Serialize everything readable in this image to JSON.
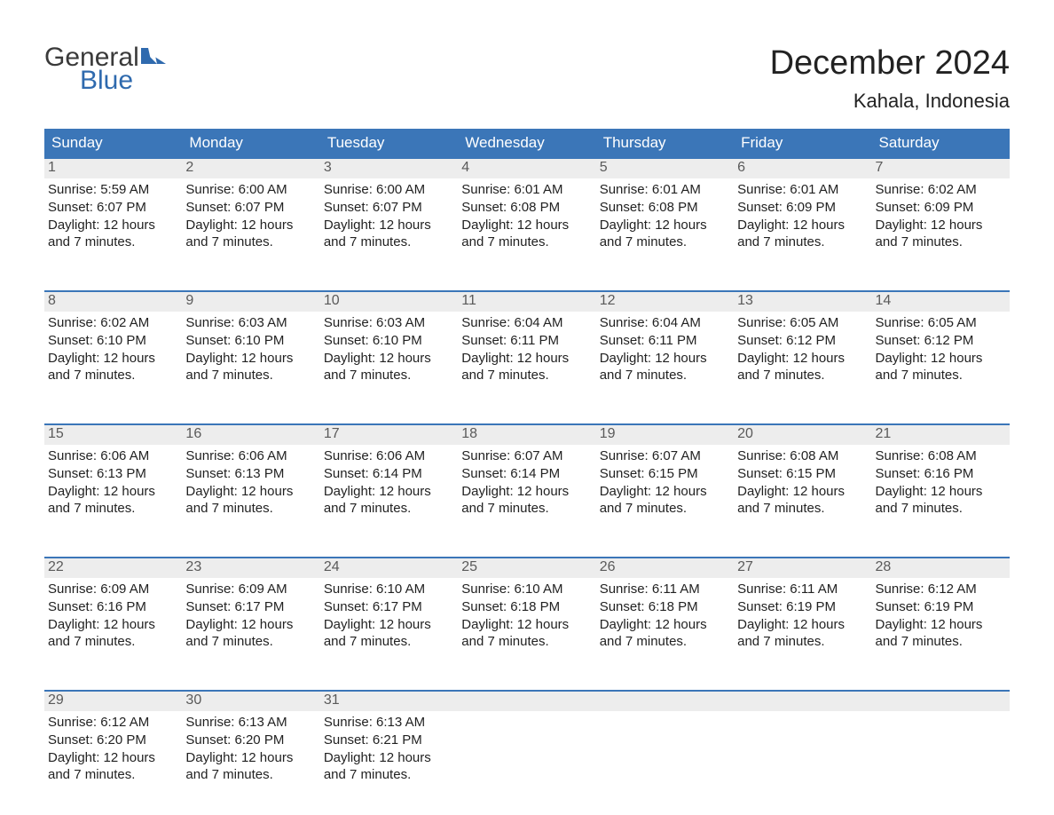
{
  "logo": {
    "word1": "General",
    "word2": "Blue",
    "flag_color": "#2f6aae",
    "text_gray": "#3a3a3a"
  },
  "title": "December 2024",
  "location": "Kahala, Indonesia",
  "colors": {
    "header_bg": "#3b76b8",
    "header_text": "#ffffff",
    "week_border": "#3b76b8",
    "daynum_bg": "#ededed",
    "daynum_text": "#5a5a5a",
    "body_text": "#222222",
    "page_bg": "#ffffff"
  },
  "day_names": [
    "Sunday",
    "Monday",
    "Tuesday",
    "Wednesday",
    "Thursday",
    "Friday",
    "Saturday"
  ],
  "labels": {
    "sunrise_prefix": "Sunrise: ",
    "sunset_prefix": "Sunset: ",
    "daylight_prefix": "Daylight: ",
    "daylight_suffix_line2_prefix": "and ",
    "daylight_suffix_line2_suffix": "."
  },
  "weeks": [
    [
      {
        "n": "1",
        "sunrise": "5:59 AM",
        "sunset": "6:07 PM",
        "dl1": "12 hours",
        "dl2": "7 minutes"
      },
      {
        "n": "2",
        "sunrise": "6:00 AM",
        "sunset": "6:07 PM",
        "dl1": "12 hours",
        "dl2": "7 minutes"
      },
      {
        "n": "3",
        "sunrise": "6:00 AM",
        "sunset": "6:07 PM",
        "dl1": "12 hours",
        "dl2": "7 minutes"
      },
      {
        "n": "4",
        "sunrise": "6:01 AM",
        "sunset": "6:08 PM",
        "dl1": "12 hours",
        "dl2": "7 minutes"
      },
      {
        "n": "5",
        "sunrise": "6:01 AM",
        "sunset": "6:08 PM",
        "dl1": "12 hours",
        "dl2": "7 minutes"
      },
      {
        "n": "6",
        "sunrise": "6:01 AM",
        "sunset": "6:09 PM",
        "dl1": "12 hours",
        "dl2": "7 minutes"
      },
      {
        "n": "7",
        "sunrise": "6:02 AM",
        "sunset": "6:09 PM",
        "dl1": "12 hours",
        "dl2": "7 minutes"
      }
    ],
    [
      {
        "n": "8",
        "sunrise": "6:02 AM",
        "sunset": "6:10 PM",
        "dl1": "12 hours",
        "dl2": "7 minutes"
      },
      {
        "n": "9",
        "sunrise": "6:03 AM",
        "sunset": "6:10 PM",
        "dl1": "12 hours",
        "dl2": "7 minutes"
      },
      {
        "n": "10",
        "sunrise": "6:03 AM",
        "sunset": "6:10 PM",
        "dl1": "12 hours",
        "dl2": "7 minutes"
      },
      {
        "n": "11",
        "sunrise": "6:04 AM",
        "sunset": "6:11 PM",
        "dl1": "12 hours",
        "dl2": "7 minutes"
      },
      {
        "n": "12",
        "sunrise": "6:04 AM",
        "sunset": "6:11 PM",
        "dl1": "12 hours",
        "dl2": "7 minutes"
      },
      {
        "n": "13",
        "sunrise": "6:05 AM",
        "sunset": "6:12 PM",
        "dl1": "12 hours",
        "dl2": "7 minutes"
      },
      {
        "n": "14",
        "sunrise": "6:05 AM",
        "sunset": "6:12 PM",
        "dl1": "12 hours",
        "dl2": "7 minutes"
      }
    ],
    [
      {
        "n": "15",
        "sunrise": "6:06 AM",
        "sunset": "6:13 PM",
        "dl1": "12 hours",
        "dl2": "7 minutes"
      },
      {
        "n": "16",
        "sunrise": "6:06 AM",
        "sunset": "6:13 PM",
        "dl1": "12 hours",
        "dl2": "7 minutes"
      },
      {
        "n": "17",
        "sunrise": "6:06 AM",
        "sunset": "6:14 PM",
        "dl1": "12 hours",
        "dl2": "7 minutes"
      },
      {
        "n": "18",
        "sunrise": "6:07 AM",
        "sunset": "6:14 PM",
        "dl1": "12 hours",
        "dl2": "7 minutes"
      },
      {
        "n": "19",
        "sunrise": "6:07 AM",
        "sunset": "6:15 PM",
        "dl1": "12 hours",
        "dl2": "7 minutes"
      },
      {
        "n": "20",
        "sunrise": "6:08 AM",
        "sunset": "6:15 PM",
        "dl1": "12 hours",
        "dl2": "7 minutes"
      },
      {
        "n": "21",
        "sunrise": "6:08 AM",
        "sunset": "6:16 PM",
        "dl1": "12 hours",
        "dl2": "7 minutes"
      }
    ],
    [
      {
        "n": "22",
        "sunrise": "6:09 AM",
        "sunset": "6:16 PM",
        "dl1": "12 hours",
        "dl2": "7 minutes"
      },
      {
        "n": "23",
        "sunrise": "6:09 AM",
        "sunset": "6:17 PM",
        "dl1": "12 hours",
        "dl2": "7 minutes"
      },
      {
        "n": "24",
        "sunrise": "6:10 AM",
        "sunset": "6:17 PM",
        "dl1": "12 hours",
        "dl2": "7 minutes"
      },
      {
        "n": "25",
        "sunrise": "6:10 AM",
        "sunset": "6:18 PM",
        "dl1": "12 hours",
        "dl2": "7 minutes"
      },
      {
        "n": "26",
        "sunrise": "6:11 AM",
        "sunset": "6:18 PM",
        "dl1": "12 hours",
        "dl2": "7 minutes"
      },
      {
        "n": "27",
        "sunrise": "6:11 AM",
        "sunset": "6:19 PM",
        "dl1": "12 hours",
        "dl2": "7 minutes"
      },
      {
        "n": "28",
        "sunrise": "6:12 AM",
        "sunset": "6:19 PM",
        "dl1": "12 hours",
        "dl2": "7 minutes"
      }
    ],
    [
      {
        "n": "29",
        "sunrise": "6:12 AM",
        "sunset": "6:20 PM",
        "dl1": "12 hours",
        "dl2": "7 minutes"
      },
      {
        "n": "30",
        "sunrise": "6:13 AM",
        "sunset": "6:20 PM",
        "dl1": "12 hours",
        "dl2": "7 minutes"
      },
      {
        "n": "31",
        "sunrise": "6:13 AM",
        "sunset": "6:21 PM",
        "dl1": "12 hours",
        "dl2": "7 minutes"
      },
      null,
      null,
      null,
      null
    ]
  ]
}
